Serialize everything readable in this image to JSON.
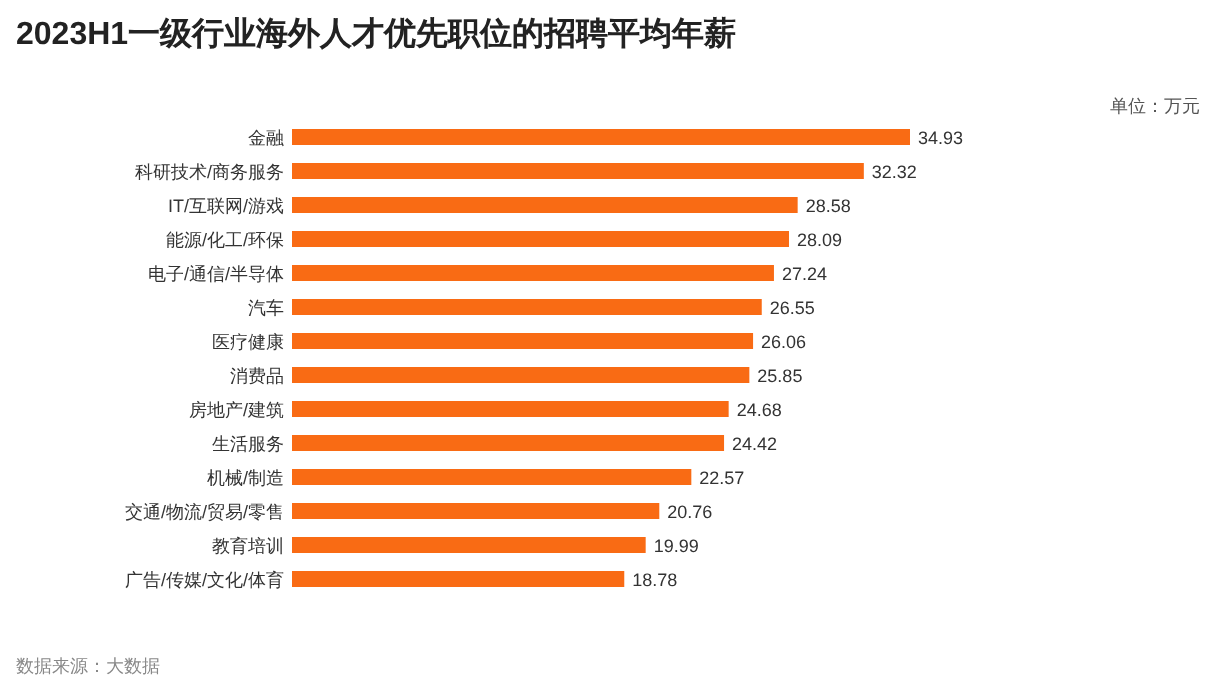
{
  "chart_data": {
    "type": "bar",
    "orientation": "horizontal",
    "title": "2023H1一级行业海外人才优先职位的招聘平均年薪",
    "categories": [
      "金融",
      "科研技术/商务服务",
      "IT/互联网/游戏",
      "能源/化工/环保",
      "电子/通信/半导体",
      "汽车",
      "医疗健康",
      "消费品",
      "房地产/建筑",
      "生活服务",
      "机械/制造",
      "交通/物流/贸易/零售",
      "教育培训",
      "广告/传媒/文化/体育"
    ],
    "values": [
      34.93,
      32.32,
      28.58,
      28.09,
      27.24,
      26.55,
      26.06,
      25.85,
      24.68,
      24.42,
      22.57,
      20.76,
      19.99,
      18.78
    ],
    "color": "#f96b14",
    "data_labels": true,
    "annotations": [
      "单位：万元",
      "数据来源：大数据"
    ]
  }
}
